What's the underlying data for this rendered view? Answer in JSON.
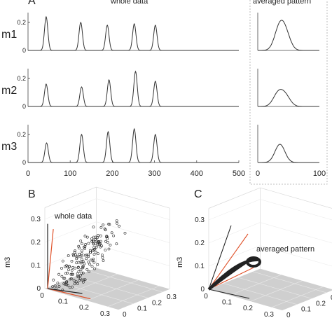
{
  "panels": {
    "a": {
      "label": "A",
      "whole_title": "whole data",
      "avg_title": "averaged pattern"
    },
    "b": {
      "label": "B",
      "annotation": "whole data",
      "zlabel": "m3"
    },
    "c": {
      "label": "C",
      "annotation": "averaged pattern",
      "zlabel": "m3"
    }
  },
  "chart_data": [
    {
      "type": "line",
      "panel": "A-whole",
      "title": "whole data",
      "xlim": [
        0,
        500
      ],
      "xticks": [
        "0",
        "100",
        "200",
        "300",
        "400",
        "500"
      ],
      "ylim": [
        0,
        0.25
      ],
      "yticks": [
        "0",
        "0.2"
      ],
      "peak_width": 4,
      "series": [
        {
          "name": "m1",
          "peaks": [
            [
              43,
              0.24
            ],
            [
              125,
              0.2
            ],
            [
              188,
              0.18
            ],
            [
              252,
              0.19
            ],
            [
              302,
              0.18
            ]
          ]
        },
        {
          "name": "m2",
          "peaks": [
            [
              43,
              0.16
            ],
            [
              127,
              0.14
            ],
            [
              192,
              0.19
            ],
            [
              255,
              0.25
            ],
            [
              302,
              0.18
            ]
          ]
        },
        {
          "name": "m3",
          "peaks": [
            [
              44,
              0.14
            ],
            [
              127,
              0.2
            ],
            [
              190,
              0.22
            ],
            [
              252,
              0.24
            ],
            [
              302,
              0.2
            ]
          ]
        }
      ]
    },
    {
      "type": "line",
      "panel": "A-averaged",
      "title": "averaged pattern",
      "xlim": [
        0,
        100
      ],
      "xticks": [
        "0",
        "100"
      ],
      "ylim": [
        0,
        0.25
      ],
      "series": [
        {
          "name": "m1",
          "peaks": [
            [
              35,
              0.15
            ],
            [
              45,
              0.11
            ]
          ]
        },
        {
          "name": "m2",
          "peaks": [
            [
              33,
              0.09
            ],
            [
              45,
              0.07
            ]
          ]
        },
        {
          "name": "m3",
          "peaks": [
            [
              36,
              0.13
            ]
          ]
        }
      ]
    },
    {
      "type": "scatter",
      "panel": "B",
      "zlabel": "m3",
      "axis_ticks": {
        "x": [
          "0",
          "0.1",
          "0.2",
          "0.3"
        ],
        "y": [
          "0",
          "0.1",
          "0.2",
          "0.3"
        ],
        "z": [
          "0",
          "0.1",
          "0.2",
          "0.3"
        ]
      }
    },
    {
      "type": "line",
      "panel": "C",
      "zlabel": "m3",
      "axis_ticks": {
        "x": [
          "0",
          "0.1",
          "0.2",
          "0.3"
        ],
        "y": [
          "0",
          "0.1",
          "0.2",
          "0.3"
        ],
        "z": [
          "0",
          "0.1",
          "0.2",
          "0.3"
        ]
      }
    }
  ],
  "colors": {
    "trace": "#333333",
    "arrow_red": "#e0522a",
    "floor": "#cfcfcf",
    "frame": "#999999"
  }
}
